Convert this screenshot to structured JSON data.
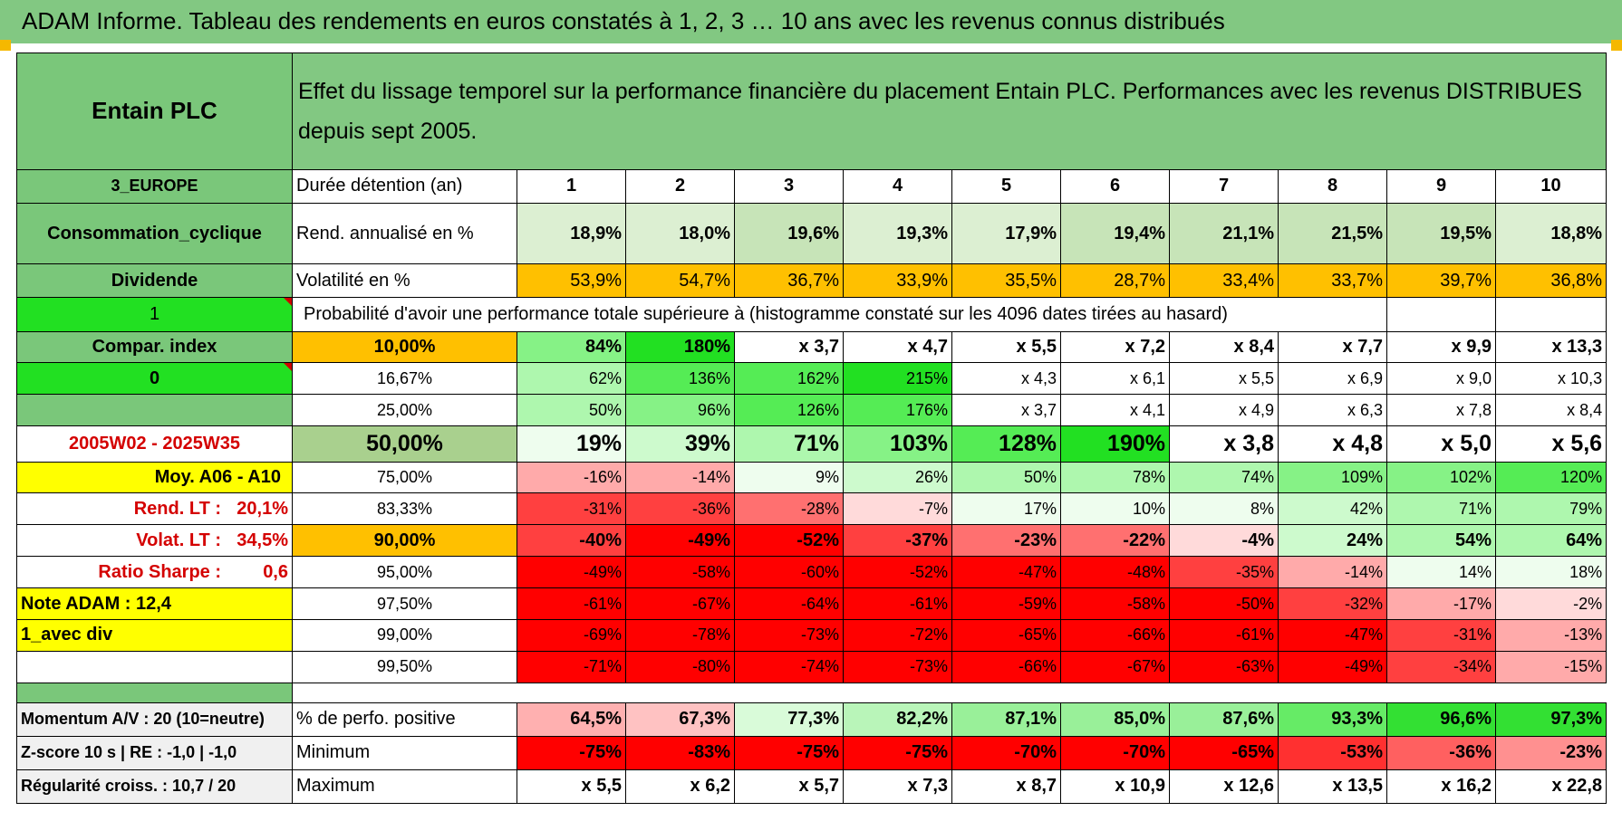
{
  "title": "ADAM Informe. Tableau des rendements en euros constatés à 1, 2, 3 … 10 ans avec les revenus connus distribués",
  "colors": {
    "header_green": "#82c882",
    "label_green": "#7ac77a",
    "bright_green": "#22e022",
    "yellow": "#ffff00",
    "orange": "#ffc000",
    "red_text": "#d40000"
  },
  "left": {
    "name": "Entain PLC",
    "region": "3_EUROPE",
    "sector": "Consommation_cyclique",
    "income": "Dividende",
    "flag1": "1",
    "compar": "Compar. index",
    "flag0": "0",
    "period": "2005W02 - 2025W35",
    "moy": "Moy. A06 - A10",
    "rend_lt_label": "Rend. LT :",
    "rend_lt_value": "20,1%",
    "volat_lt_label": "Volat. LT :",
    "volat_lt_value": "34,5%",
    "sharpe_label": "Ratio Sharpe :",
    "sharpe_value": "0,6",
    "note": "Note ADAM : 12,4",
    "div": "1_avec div",
    "momentum": "Momentum A/V : 20 (10=neutre)",
    "zscore": "Z-score 10 s | RE : -1,0 | -1,0",
    "regularite": "Régularité croiss. : 10,7 / 20"
  },
  "description": "Effet du lissage temporel sur la performance financière du placement Entain PLC. Performances avec les revenus DISTRIBUES depuis sept 2005.",
  "row_labels": {
    "duree": "Durée détention (an)",
    "rend": "Rend. annualisé en %",
    "vol": "Volatilité en %",
    "prob": "Probabilité d'avoir une performance totale supérieure à (histogramme constaté sur les 4096 dates tirées au hasard)",
    "positive": "% de perfo. positive",
    "minimum": "Minimum",
    "maximum": "Maximum"
  },
  "years": [
    "1",
    "2",
    "3",
    "4",
    "5",
    "6",
    "7",
    "8",
    "9",
    "10"
  ],
  "rend": [
    "18,9%",
    "18,0%",
    "19,6%",
    "19,3%",
    "17,9%",
    "19,4%",
    "21,1%",
    "21,5%",
    "19,5%",
    "18,8%"
  ],
  "vol": [
    "53,9%",
    "54,7%",
    "36,7%",
    "33,9%",
    "35,5%",
    "28,7%",
    "33,4%",
    "33,7%",
    "39,7%",
    "36,8%"
  ],
  "percentiles": [
    {
      "p": "10,00%",
      "vals": [
        "84%",
        "180%",
        "x 3,7",
        "x 4,7",
        "x 5,5",
        "x 7,2",
        "x 8,4",
        "x 7,7",
        "x 9,9",
        "x 13,3"
      ]
    },
    {
      "p": "16,67%",
      "vals": [
        "62%",
        "136%",
        "162%",
        "215%",
        "x 4,3",
        "x 6,1",
        "x 5,5",
        "x 6,9",
        "x 9,0",
        "x 10,3"
      ]
    },
    {
      "p": "25,00%",
      "vals": [
        "50%",
        "96%",
        "126%",
        "176%",
        "x 3,7",
        "x 4,1",
        "x 4,9",
        "x 6,3",
        "x 7,8",
        "x 8,4"
      ]
    },
    {
      "p": "50,00%",
      "vals": [
        "19%",
        "39%",
        "71%",
        "103%",
        "128%",
        "190%",
        "x 3,8",
        "x 4,8",
        "x 5,0",
        "x 5,6"
      ]
    },
    {
      "p": "75,00%",
      "vals": [
        "-16%",
        "-14%",
        "9%",
        "26%",
        "50%",
        "78%",
        "74%",
        "109%",
        "102%",
        "120%"
      ]
    },
    {
      "p": "83,33%",
      "vals": [
        "-31%",
        "-36%",
        "-28%",
        "-7%",
        "17%",
        "10%",
        "8%",
        "42%",
        "71%",
        "79%"
      ]
    },
    {
      "p": "90,00%",
      "vals": [
        "-40%",
        "-49%",
        "-52%",
        "-37%",
        "-23%",
        "-22%",
        "-4%",
        "24%",
        "54%",
        "64%"
      ]
    },
    {
      "p": "95,00%",
      "vals": [
        "-49%",
        "-58%",
        "-60%",
        "-52%",
        "-47%",
        "-48%",
        "-35%",
        "-14%",
        "14%",
        "18%"
      ]
    },
    {
      "p": "97,50%",
      "vals": [
        "-61%",
        "-67%",
        "-64%",
        "-61%",
        "-59%",
        "-58%",
        "-50%",
        "-32%",
        "-17%",
        "-2%"
      ]
    },
    {
      "p": "99,00%",
      "vals": [
        "-69%",
        "-78%",
        "-73%",
        "-72%",
        "-65%",
        "-66%",
        "-61%",
        "-47%",
        "-31%",
        "-13%"
      ]
    },
    {
      "p": "99,50%",
      "vals": [
        "-71%",
        "-80%",
        "-74%",
        "-73%",
        "-66%",
        "-67%",
        "-63%",
        "-49%",
        "-34%",
        "-15%"
      ]
    }
  ],
  "positive": [
    "64,5%",
    "67,3%",
    "77,3%",
    "82,2%",
    "87,1%",
    "85,0%",
    "87,6%",
    "93,3%",
    "96,6%",
    "97,3%"
  ],
  "minimum": [
    "-75%",
    "-83%",
    "-75%",
    "-75%",
    "-70%",
    "-70%",
    "-65%",
    "-53%",
    "-36%",
    "-23%"
  ],
  "maximum": [
    "x 5,5",
    "x 6,2",
    "x 5,7",
    "x 7,3",
    "x 8,7",
    "x 10,9",
    "x 12,6",
    "x 13,5",
    "x 16,2",
    "x 22,8"
  ]
}
